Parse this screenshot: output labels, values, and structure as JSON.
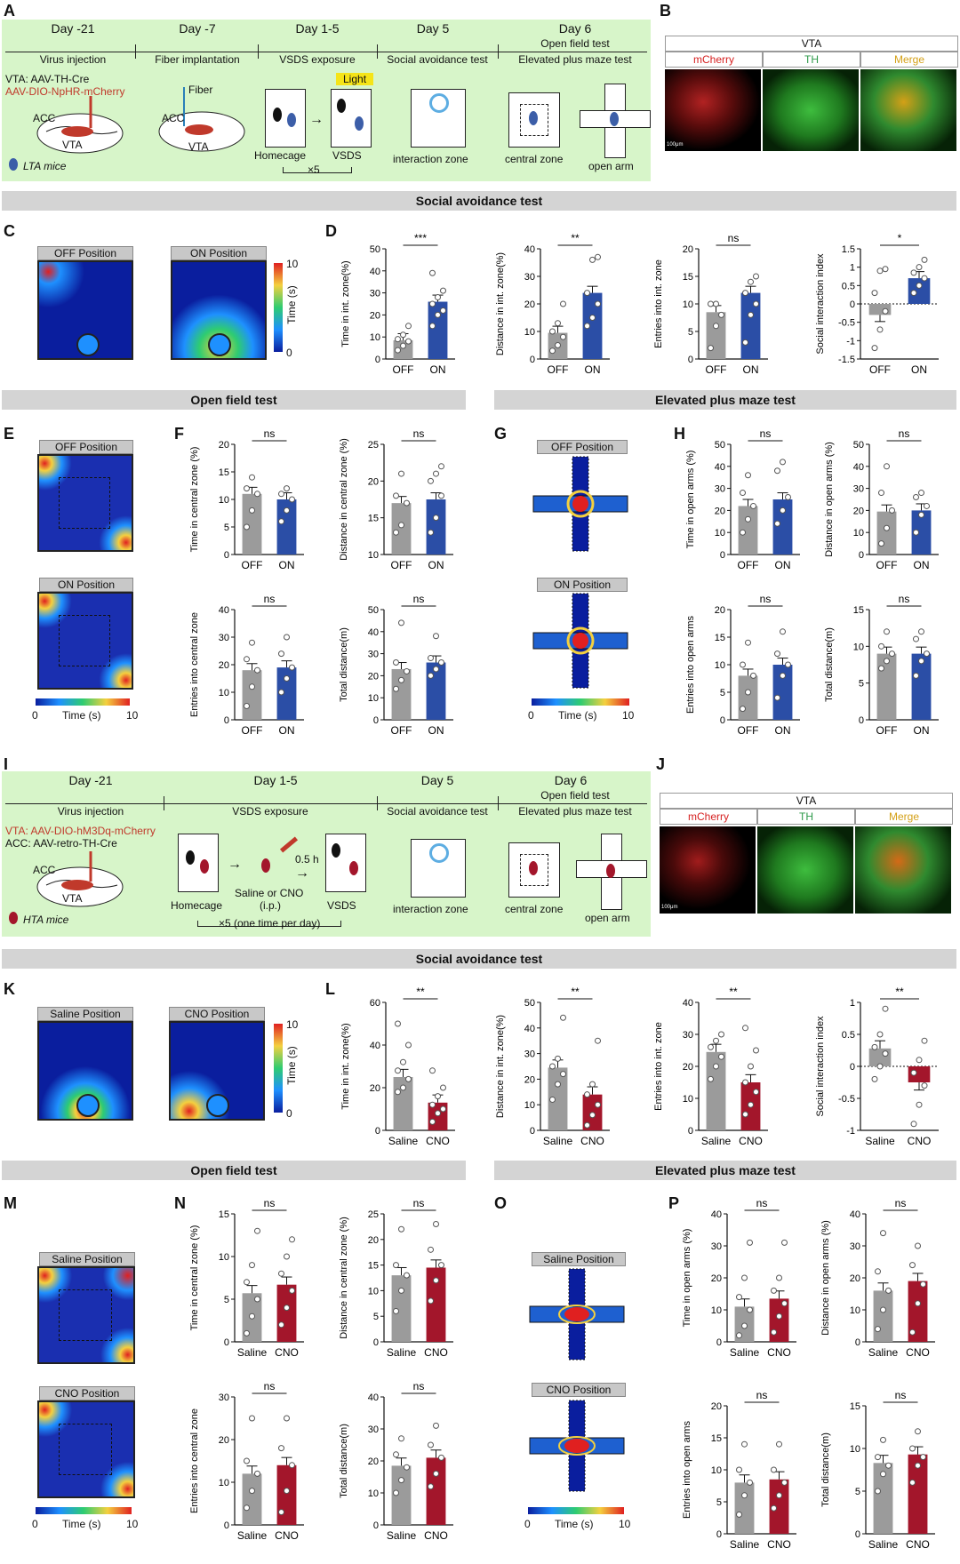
{
  "panel_labels": {
    "A": "A",
    "B": "B",
    "C": "C",
    "D": "D",
    "E": "E",
    "F": "F",
    "G": "G",
    "H": "H",
    "I": "I",
    "J": "J",
    "K": "K",
    "L": "L",
    "M": "M",
    "N": "N",
    "O": "O",
    "P": "P"
  },
  "colors": {
    "off": "#9b9b9b",
    "on_blue": "#2b4ea6",
    "cno_red": "#a3162b",
    "green_bg": "#d7f5c9",
    "grey_bar": "#d4d4d4"
  },
  "timelineA": {
    "days": [
      "Day -21",
      "Day -7",
      "Day 1-5",
      "Day 5",
      "Day 6"
    ],
    "events": [
      "Virus injection",
      "Fiber implantation",
      "VSDS exposure",
      "Social avoidance test",
      "Open field test",
      "Elevated plus maze test"
    ],
    "virus1": "VTA: AAV-TH-Cre",
    "virus2": "AAV-DIO-NpHR-mCherry",
    "fiber": "Fiber",
    "light": "Light",
    "acc": "ACC",
    "vta": "VTA",
    "homecage": "Homecage",
    "vsds": "VSDS",
    "times": "×5",
    "mice": "LTA mice",
    "interaction": "interaction zone",
    "central": "central zone",
    "openarm": "open arm"
  },
  "timelineI": {
    "days": [
      "Day -21",
      "Day 1-5",
      "Day 5",
      "Day 6"
    ],
    "events": [
      "Virus injection",
      "VSDS exposure",
      "Social avoidance test",
      "Open field test",
      "Elevated plus maze test"
    ],
    "virus1": "VTA: AAV-DIO-hM3Dq-mCherry",
    "virus2": "ACC: AAV-retro-TH-Cre",
    "acc": "ACC",
    "vta": "VTA",
    "homecage": "Homecage",
    "saline_cno": "Saline or CNO",
    "ip": "(i.p.)",
    "half_h": "0.5 h",
    "vsds": "VSDS",
    "times": "×5 (one time per day)",
    "mice": "HTA mice",
    "interaction": "interaction zone",
    "central": "central zone",
    "openarm": "open arm"
  },
  "microscopy": {
    "title": "VTA",
    "mcherry": "mCherry",
    "th": "TH",
    "merge": "Merge",
    "scale": "100μm"
  },
  "section_titles": {
    "social1": "Social avoidance test",
    "open1": "Open field test",
    "epm1": "Elevated plus maze test",
    "social2": "Social avoidance test",
    "open2": "Open field test",
    "epm2": "Elevated plus maze test"
  },
  "heatmaps": {
    "C": [
      "OFF Position",
      "ON Position"
    ],
    "E": [
      "OFF Position",
      "ON Position"
    ],
    "G": [
      "OFF Position",
      "ON Position"
    ],
    "K": [
      "Saline Position",
      "CNO Position"
    ],
    "M": [
      "Saline Position",
      "CNO Position"
    ],
    "O": [
      "Saline Position",
      "CNO Position"
    ],
    "scale_ticks": [
      "0",
      "10"
    ],
    "time_label": "Time (s)"
  },
  "chart_data": [
    {
      "id": "D1",
      "type": "bar",
      "categories": [
        "OFF",
        "ON"
      ],
      "values": [
        8.5,
        26
      ],
      "ylim": [
        0,
        50
      ],
      "yticks": [
        0,
        10,
        20,
        30,
        40,
        50
      ],
      "ylabel": "Time in int. zone(%)",
      "sig": "***",
      "points": [
        [
          4,
          6,
          8,
          9,
          11,
          15
        ],
        [
          15,
          20,
          22,
          25,
          28,
          31,
          39
        ]
      ]
    },
    {
      "id": "D2",
      "type": "bar",
      "categories": [
        "OFF",
        "ON"
      ],
      "values": [
        9.5,
        24
      ],
      "ylim": [
        0,
        40
      ],
      "yticks": [
        0,
        10,
        20,
        30,
        40
      ],
      "ylabel": "Distance in int. zone(%)",
      "sig": "**",
      "points": [
        [
          3,
          5,
          8,
          10,
          13,
          20
        ],
        [
          12,
          15,
          20,
          24,
          36,
          37
        ]
      ]
    },
    {
      "id": "D3",
      "type": "bar",
      "categories": [
        "OFF",
        "ON"
      ],
      "values": [
        8.5,
        12
      ],
      "ylim": [
        0,
        20
      ],
      "yticks": [
        0,
        5,
        10,
        15,
        20
      ],
      "ylabel": "Entries into int. zone",
      "sig": "ns",
      "points": [
        [
          2,
          6,
          8,
          10,
          10
        ],
        [
          3,
          8,
          10,
          12,
          14,
          15
        ]
      ]
    },
    {
      "id": "D4",
      "type": "bar",
      "categories": [
        "OFF",
        "ON"
      ],
      "values": [
        -0.3,
        0.7
      ],
      "ylim": [
        -1.5,
        1.5
      ],
      "yticks": [
        -1.5,
        -1.0,
        -0.5,
        0.0,
        0.5,
        1.0,
        1.5
      ],
      "ylabel": "Social interaction index",
      "sig": "*",
      "points": [
        [
          -1.2,
          -0.7,
          -0.2,
          0.3,
          0.9,
          0.95
        ],
        [
          0.3,
          0.5,
          0.7,
          0.85,
          1.0,
          1.2
        ]
      ]
    },
    {
      "id": "F1",
      "type": "bar",
      "categories": [
        "OFF",
        "ON"
      ],
      "values": [
        11,
        10
      ],
      "ylim": [
        0,
        20
      ],
      "yticks": [
        0,
        5,
        10,
        15,
        20
      ],
      "ylabel": "Time in central zone (%)",
      "sig": "ns",
      "points": [
        [
          5,
          8,
          11,
          12,
          14
        ],
        [
          6,
          8,
          10,
          11,
          12
        ]
      ]
    },
    {
      "id": "F2",
      "type": "bar",
      "categories": [
        "OFF",
        "ON"
      ],
      "values": [
        17,
        17.5
      ],
      "ylim": [
        10,
        25
      ],
      "yticks": [
        10,
        15,
        20,
        25
      ],
      "ylabel": "Distance in central zone (%)",
      "sig": "ns",
      "points": [
        [
          13,
          14,
          17,
          18,
          21
        ],
        [
          13,
          15,
          18,
          20,
          21,
          22
        ]
      ]
    },
    {
      "id": "F3",
      "type": "bar",
      "categories": [
        "OFF",
        "ON"
      ],
      "values": [
        18,
        19
      ],
      "ylim": [
        0,
        40
      ],
      "yticks": [
        0,
        10,
        20,
        30,
        40
      ],
      "ylabel": "Entries into central zone",
      "sig": "ns",
      "points": [
        [
          5,
          12,
          18,
          22,
          28
        ],
        [
          10,
          15,
          19,
          24,
          30
        ]
      ]
    },
    {
      "id": "F4",
      "type": "bar",
      "categories": [
        "OFF",
        "ON"
      ],
      "values": [
        23,
        26
      ],
      "ylim": [
        0,
        50
      ],
      "yticks": [
        0,
        10,
        20,
        30,
        40,
        50
      ],
      "ylabel": "Total distance(m)",
      "sig": "ns",
      "points": [
        [
          14,
          18,
          22,
          26,
          44
        ],
        [
          20,
          23,
          26,
          28,
          38
        ]
      ]
    },
    {
      "id": "H1",
      "type": "bar",
      "categories": [
        "OFF",
        "ON"
      ],
      "values": [
        22,
        25
      ],
      "ylim": [
        0,
        50
      ],
      "yticks": [
        0,
        10,
        20,
        30,
        40,
        50
      ],
      "ylabel": "Time in open arms (%)",
      "sig": "ns",
      "points": [
        [
          10,
          16,
          22,
          28,
          36
        ],
        [
          14,
          20,
          26,
          38,
          42
        ]
      ]
    },
    {
      "id": "H2",
      "type": "bar",
      "categories": [
        "OFF",
        "ON"
      ],
      "values": [
        19.5,
        20
      ],
      "ylim": [
        0,
        50
      ],
      "yticks": [
        0,
        10,
        20,
        30,
        40,
        50
      ],
      "ylabel": "Distance in open arms (%)",
      "sig": "ns",
      "points": [
        [
          5,
          12,
          20,
          28,
          40
        ],
        [
          10,
          18,
          22,
          26,
          28
        ]
      ]
    },
    {
      "id": "H3",
      "type": "bar",
      "categories": [
        "OFF",
        "ON"
      ],
      "values": [
        8,
        10
      ],
      "ylim": [
        0,
        20
      ],
      "yticks": [
        0,
        5,
        10,
        15,
        20
      ],
      "ylabel": "Entries into open arms",
      "sig": "ns",
      "points": [
        [
          2,
          5,
          8,
          10,
          14
        ],
        [
          4,
          8,
          10,
          12,
          16
        ]
      ]
    },
    {
      "id": "H4",
      "type": "bar",
      "categories": [
        "OFF",
        "ON"
      ],
      "values": [
        9,
        9
      ],
      "ylim": [
        0,
        15
      ],
      "yticks": [
        0,
        5,
        10,
        15
      ],
      "ylabel": "Total distance(m)",
      "sig": "ns",
      "points": [
        [
          7,
          8,
          9,
          10,
          12
        ],
        [
          6,
          8,
          9,
          11,
          12
        ]
      ]
    },
    {
      "id": "L1",
      "type": "bar",
      "categories": [
        "Saline",
        "CNO"
      ],
      "values": [
        25,
        13
      ],
      "ylim": [
        0,
        60
      ],
      "yticks": [
        0,
        20,
        40,
        60
      ],
      "ylabel": "Time in int. zone(%)",
      "sig": "**",
      "points": [
        [
          18,
          20,
          24,
          28,
          32,
          40,
          50
        ],
        [
          4,
          8,
          10,
          12,
          16,
          20,
          28
        ]
      ]
    },
    {
      "id": "L2",
      "type": "bar",
      "categories": [
        "Saline",
        "CNO"
      ],
      "values": [
        24.5,
        14
      ],
      "ylim": [
        0,
        50
      ],
      "yticks": [
        0,
        10,
        20,
        30,
        40,
        50
      ],
      "ylabel": "Distance in int. zone(%)",
      "sig": "**",
      "points": [
        [
          12,
          18,
          22,
          25,
          28,
          44
        ],
        [
          2,
          6,
          10,
          14,
          18,
          35
        ]
      ]
    },
    {
      "id": "L3",
      "type": "bar",
      "categories": [
        "Saline",
        "CNO"
      ],
      "values": [
        24.5,
        15
      ],
      "ylim": [
        0,
        40
      ],
      "yticks": [
        0,
        10,
        20,
        30,
        40
      ],
      "ylabel": "Entries into int. zone",
      "sig": "**",
      "points": [
        [
          16,
          20,
          23,
          26,
          28,
          30
        ],
        [
          5,
          8,
          12,
          15,
          20,
          25,
          32
        ]
      ]
    },
    {
      "id": "L4",
      "type": "bar",
      "categories": [
        "Saline",
        "CNO"
      ],
      "values": [
        0.28,
        -0.25
      ],
      "ylim": [
        -1.0,
        1.0
      ],
      "yticks": [
        -1.0,
        -0.5,
        0.0,
        0.5,
        1.0
      ],
      "ylabel": "Social interaction index",
      "sig": "**",
      "points": [
        [
          -0.2,
          0.0,
          0.2,
          0.3,
          0.5,
          0.9
        ],
        [
          -0.9,
          -0.6,
          -0.3,
          -0.1,
          0.1,
          0.4
        ]
      ]
    },
    {
      "id": "N1",
      "type": "bar",
      "categories": [
        "Saline",
        "CNO"
      ],
      "values": [
        5.7,
        6.7
      ],
      "ylim": [
        0,
        15
      ],
      "yticks": [
        0,
        5,
        10,
        15
      ],
      "ylabel": "Time in central zone (%)",
      "sig": "ns",
      "points": [
        [
          1,
          3,
          5,
          7,
          9,
          13
        ],
        [
          2,
          4,
          6,
          8,
          10,
          12
        ]
      ]
    },
    {
      "id": "N2",
      "type": "bar",
      "categories": [
        "Saline",
        "CNO"
      ],
      "values": [
        13,
        14.5
      ],
      "ylim": [
        0,
        25
      ],
      "yticks": [
        0,
        5,
        10,
        15,
        20,
        25
      ],
      "ylabel": "Distance in central zone (%)",
      "sig": "ns",
      "points": [
        [
          6,
          10,
          13,
          15,
          22
        ],
        [
          8,
          12,
          15,
          18,
          23
        ]
      ]
    },
    {
      "id": "N3",
      "type": "bar",
      "categories": [
        "Saline",
        "CNO"
      ],
      "values": [
        12,
        14
      ],
      "ylim": [
        0,
        30
      ],
      "yticks": [
        0,
        10,
        20,
        30
      ],
      "ylabel": "Entries into central zone",
      "sig": "ns",
      "points": [
        [
          4,
          8,
          12,
          15,
          25
        ],
        [
          3,
          8,
          14,
          18,
          25
        ]
      ]
    },
    {
      "id": "N4",
      "type": "bar",
      "categories": [
        "Saline",
        "CNO"
      ],
      "values": [
        18.5,
        21
      ],
      "ylim": [
        0,
        40
      ],
      "yticks": [
        0,
        10,
        20,
        30,
        40
      ],
      "ylabel": "Total distance(m)",
      "sig": "ns",
      "points": [
        [
          10,
          14,
          18,
          22,
          27
        ],
        [
          12,
          16,
          21,
          25,
          31
        ]
      ]
    },
    {
      "id": "P1",
      "type": "bar",
      "categories": [
        "Saline",
        "CNO"
      ],
      "values": [
        11,
        13.5
      ],
      "ylim": [
        0,
        40
      ],
      "yticks": [
        0,
        10,
        20,
        30,
        40
      ],
      "ylabel": "Time in open arms (%)",
      "sig": "ns",
      "points": [
        [
          2,
          5,
          10,
          14,
          20,
          31
        ],
        [
          3,
          8,
          12,
          16,
          20,
          31
        ]
      ]
    },
    {
      "id": "P2",
      "type": "bar",
      "categories": [
        "Saline",
        "CNO"
      ],
      "values": [
        16,
        19
      ],
      "ylim": [
        0,
        40
      ],
      "yticks": [
        0,
        10,
        20,
        30,
        40
      ],
      "ylabel": "Distance in open arms (%)",
      "sig": "ns",
      "points": [
        [
          4,
          10,
          16,
          22,
          34
        ],
        [
          3,
          12,
          18,
          24,
          30
        ]
      ]
    },
    {
      "id": "P3",
      "type": "bar",
      "categories": [
        "Saline",
        "CNO"
      ],
      "values": [
        8,
        8.5
      ],
      "ylim": [
        0,
        20
      ],
      "yticks": [
        0,
        5,
        10,
        15,
        20
      ],
      "ylabel": "Entries into open arms",
      "sig": "ns",
      "points": [
        [
          3,
          6,
          8,
          10,
          14
        ],
        [
          4,
          6,
          8,
          10,
          14
        ]
      ]
    },
    {
      "id": "P4",
      "type": "bar",
      "categories": [
        "Saline",
        "CNO"
      ],
      "values": [
        8.3,
        9.3
      ],
      "ylim": [
        0,
        15
      ],
      "yticks": [
        0,
        5,
        10,
        15
      ],
      "ylabel": "Total distance(m)",
      "sig": "ns",
      "points": [
        [
          5,
          7,
          8,
          9,
          11
        ],
        [
          6,
          8,
          9,
          10,
          12
        ]
      ]
    }
  ]
}
